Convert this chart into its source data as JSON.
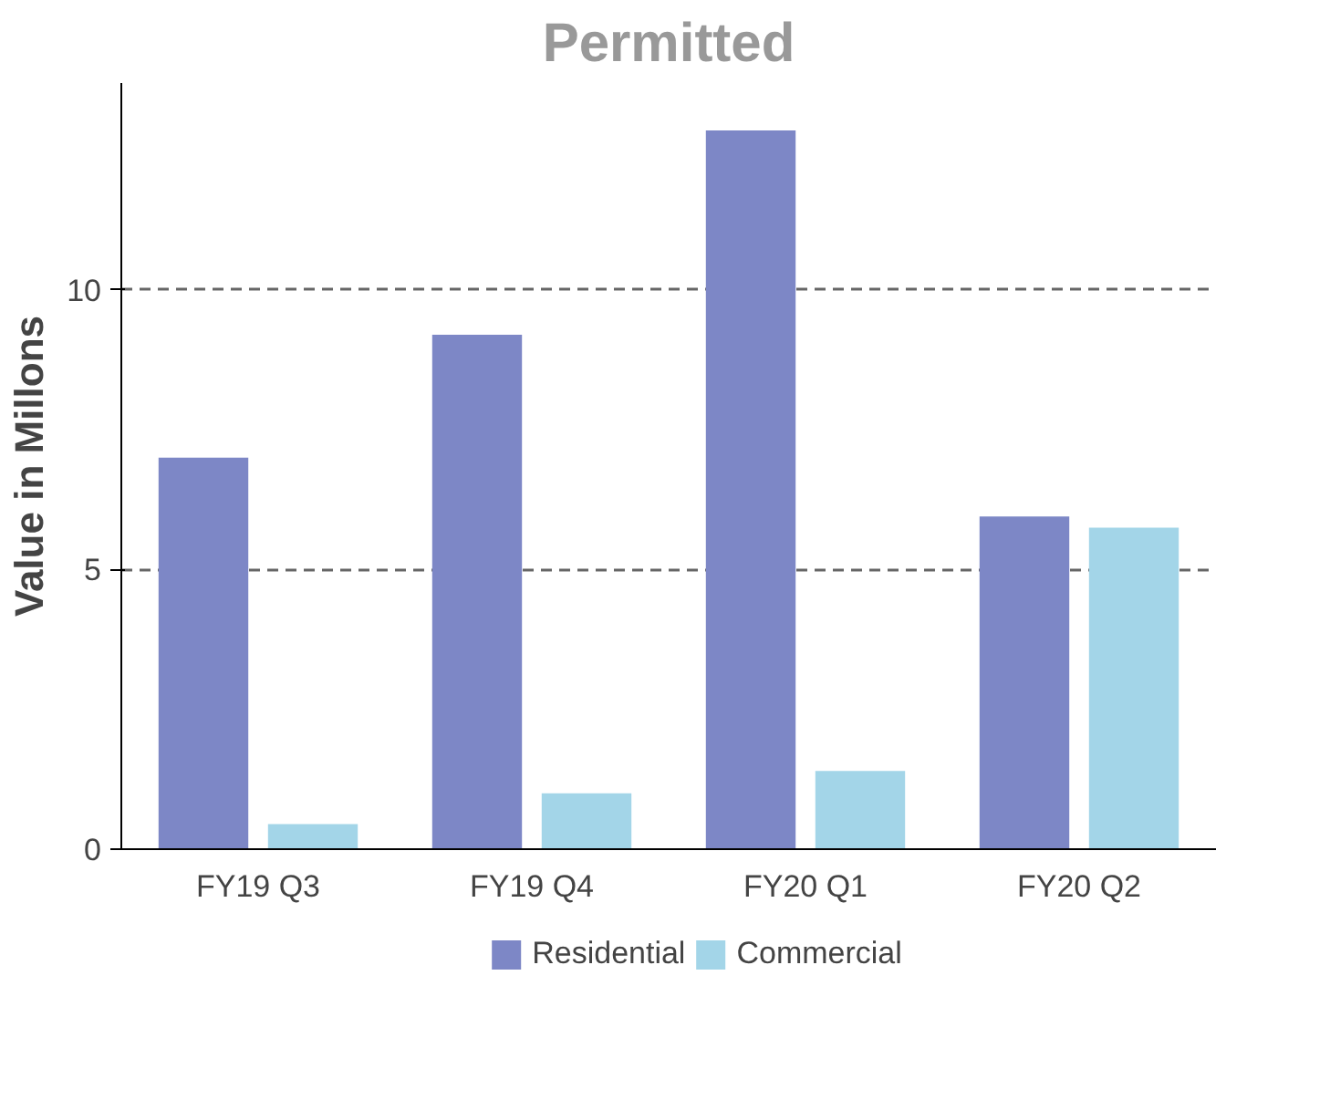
{
  "chart_data": {
    "type": "bar",
    "title": "Permitted",
    "ylabel": "Value in Millons",
    "categories": [
      "FY19 Q3",
      "FY19 Q4",
      "FY20 Q1",
      "FY20 Q2"
    ],
    "series": [
      {
        "name": "Residential",
        "color": "#7d87c6",
        "values": [
          7.0,
          9.2,
          12.85,
          5.95
        ]
      },
      {
        "name": "Commercial",
        "color": "#a3d5e8",
        "values": [
          0.45,
          1.0,
          1.4,
          5.75
        ]
      }
    ],
    "ylim": [
      0,
      13.7
    ],
    "yticks": [
      0,
      5,
      10
    ],
    "grid": "y",
    "legend": "bottom"
  }
}
